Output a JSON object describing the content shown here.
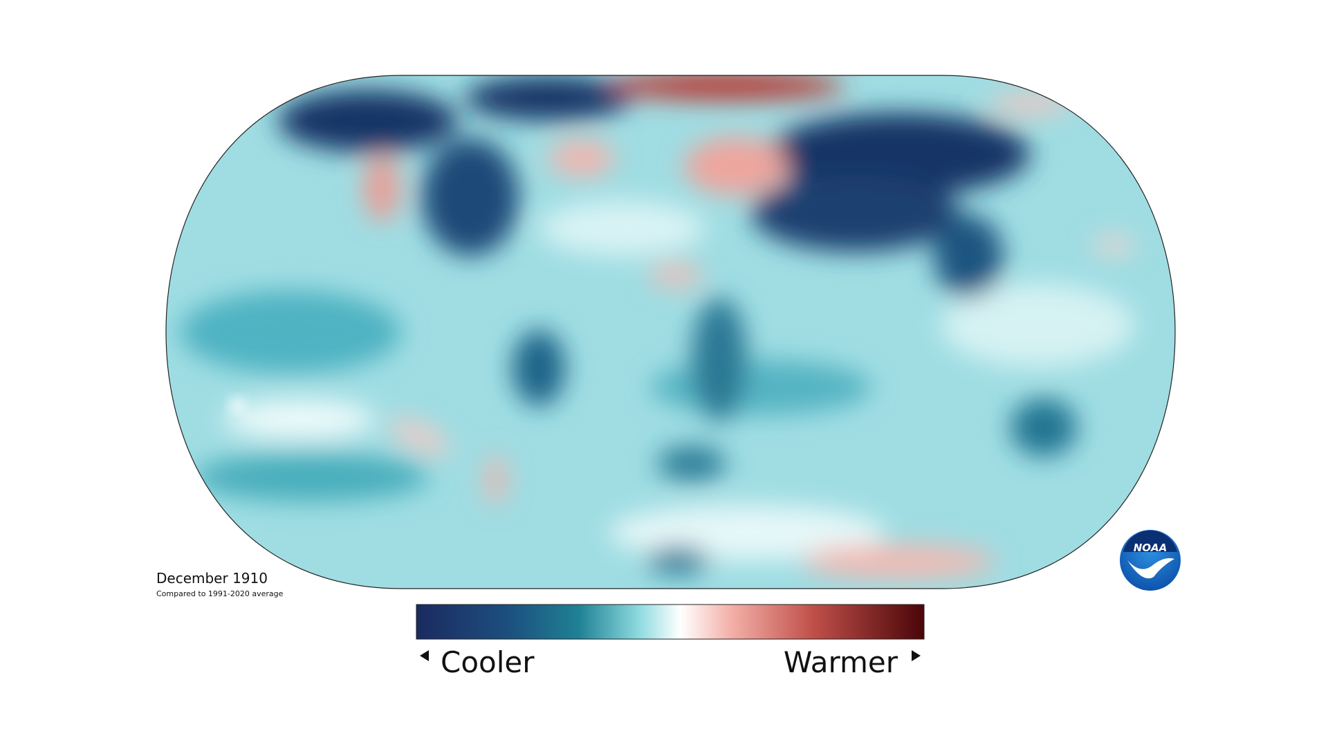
{
  "map": {
    "title": "December 1910",
    "subtitle": "Compared to 1991-2020 average"
  },
  "legend": {
    "low_label": "Cooler",
    "high_label": "Warmer"
  },
  "logo": {
    "text": "NOAA"
  }
}
